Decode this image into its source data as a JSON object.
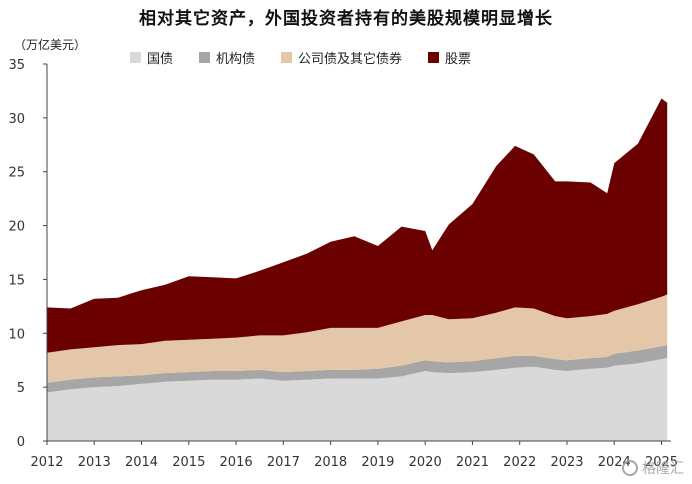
{
  "chart_data": {
    "type": "area",
    "stacked": true,
    "title": "相对其它资产，外国投资者持有的美股规模明显增长",
    "ylabel": "（万亿美元）",
    "ylim": [
      0,
      35
    ],
    "yticks": [
      0,
      5,
      10,
      15,
      20,
      25,
      30,
      35
    ],
    "xlim": [
      2012,
      2025.2
    ],
    "xticks": [
      2012,
      2013,
      2014,
      2015,
      2016,
      2017,
      2018,
      2019,
      2020,
      2021,
      2022,
      2023,
      2024,
      2025
    ],
    "xtick_labels": [
      "2012",
      "2013",
      "2014",
      "2015",
      "2016",
      "2017",
      "2018",
      "2019",
      "2020",
      "2021",
      "2022",
      "2023",
      "2024",
      "2025"
    ],
    "grid": false,
    "legend_position": "top",
    "x": [
      2012.0,
      2012.5,
      2013.0,
      2013.5,
      2014.0,
      2014.5,
      2015.0,
      2015.5,
      2016.0,
      2016.5,
      2017.0,
      2017.5,
      2018.0,
      2018.5,
      2019.0,
      2019.5,
      2020.0,
      2020.15,
      2020.5,
      2021.0,
      2021.5,
      2021.9,
      2022.3,
      2022.75,
      2023.0,
      2023.5,
      2023.85,
      2024.0,
      2024.5,
      2025.0,
      2025.12
    ],
    "series": [
      {
        "name": "国债",
        "color": "#d9d9d9",
        "values": [
          4.5,
          4.8,
          5.0,
          5.1,
          5.3,
          5.5,
          5.6,
          5.7,
          5.7,
          5.8,
          5.6,
          5.7,
          5.8,
          5.8,
          5.8,
          6.0,
          6.5,
          6.4,
          6.3,
          6.4,
          6.6,
          6.8,
          6.9,
          6.6,
          6.5,
          6.7,
          6.8,
          7.0,
          7.2,
          7.6,
          7.7
        ]
      },
      {
        "name": "机构债",
        "color": "#a6a6a6",
        "values": [
          0.9,
          0.9,
          0.9,
          0.9,
          0.8,
          0.8,
          0.8,
          0.8,
          0.8,
          0.8,
          0.8,
          0.8,
          0.8,
          0.8,
          0.9,
          1.0,
          1.0,
          1.0,
          1.0,
          1.0,
          1.1,
          1.1,
          1.0,
          1.0,
          1.0,
          1.0,
          1.0,
          1.1,
          1.2,
          1.2,
          1.2
        ]
      },
      {
        "name": "公司债及其它债券",
        "color": "#e3c7a8",
        "values": [
          2.8,
          2.8,
          2.8,
          2.9,
          2.9,
          3.0,
          3.0,
          3.0,
          3.1,
          3.2,
          3.4,
          3.6,
          3.9,
          3.9,
          3.8,
          4.1,
          4.2,
          4.3,
          4.0,
          4.0,
          4.2,
          4.5,
          4.4,
          4.0,
          3.9,
          3.9,
          4.0,
          4.0,
          4.3,
          4.6,
          4.7
        ]
      },
      {
        "name": "股票",
        "color": "#6b0000",
        "values": [
          4.2,
          3.8,
          4.5,
          4.4,
          5.0,
          5.2,
          5.9,
          5.7,
          5.5,
          6.0,
          6.8,
          7.3,
          8.0,
          8.5,
          7.6,
          8.8,
          7.8,
          6.0,
          8.8,
          10.6,
          13.6,
          15.0,
          14.3,
          12.5,
          12.7,
          12.4,
          11.2,
          13.7,
          14.9,
          18.4,
          17.8
        ]
      }
    ]
  },
  "watermark": {
    "text": "格隆汇"
  }
}
